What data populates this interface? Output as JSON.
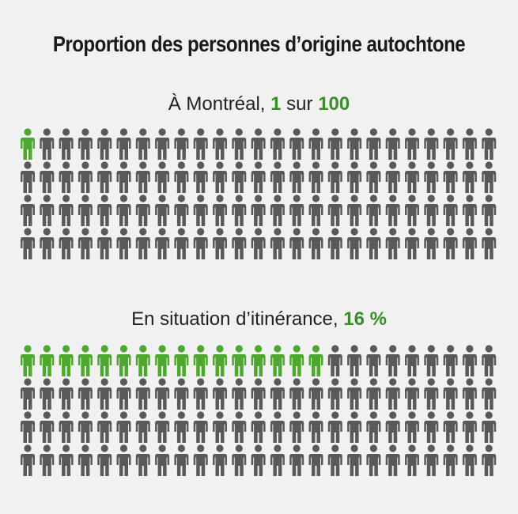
{
  "header": {
    "title": "Proportion des personnes d’origine autochtone"
  },
  "colors": {
    "highlight": "#4ea72e",
    "base": "#595959",
    "highlight_text": "#3b8d2c",
    "background": "#f1f1f1"
  },
  "chart_data": [
    {
      "type": "pictograph",
      "label_prefix": "À Montréal, ",
      "label_value": "1",
      "label_middle": " sur ",
      "label_total": "100",
      "highlighted": 1,
      "total": 100,
      "icon": "person-icon"
    },
    {
      "type": "pictograph",
      "label_prefix": "En situation d’itinérance, ",
      "label_value": "16 %",
      "highlighted": 16,
      "total": 100,
      "icon": "person-icon"
    }
  ]
}
